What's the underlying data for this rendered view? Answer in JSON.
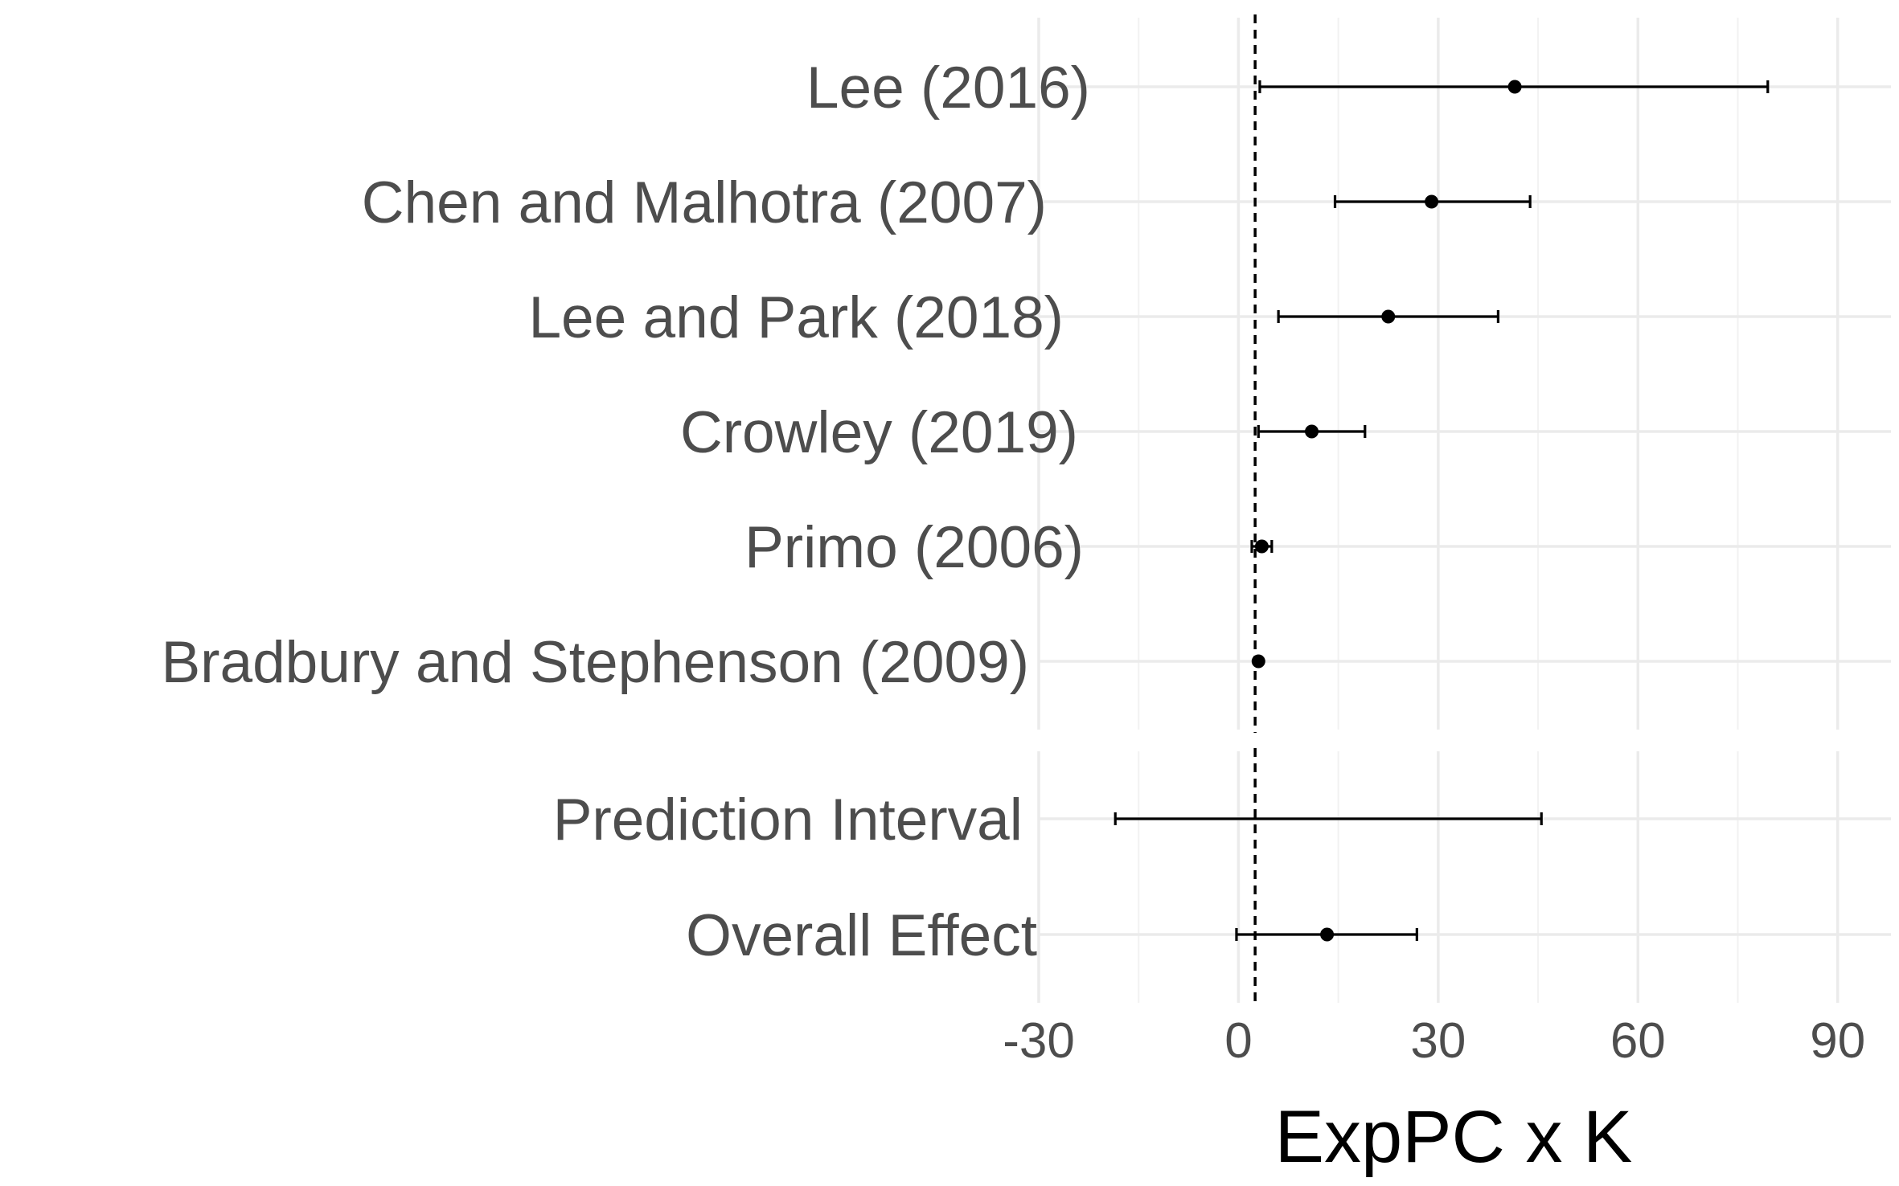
{
  "chart_data": {
    "type": "forest",
    "xlabel": "ExpPC x K",
    "xlim": [
      -30,
      98
    ],
    "x_ticks": [
      -30,
      0,
      30,
      60,
      90
    ],
    "x_minor_ticks": [
      -15,
      15,
      45,
      75
    ],
    "reference_line": {
      "x": 2.5,
      "style": "dashed"
    },
    "grid": true,
    "panels": [
      {
        "name": "studies",
        "rows": [
          {
            "label": "Lee (2016)",
            "estimate": 41.5,
            "lower": 3.2,
            "upper": 79.5
          },
          {
            "label": "Chen and Malhotra (2007)",
            "estimate": 29.0,
            "lower": 14.5,
            "upper": 43.8
          },
          {
            "label": "Lee and Park (2018)",
            "estimate": 22.5,
            "lower": 6.0,
            "upper": 39.0
          },
          {
            "label": "Crowley (2019)",
            "estimate": 11.0,
            "lower": 3.0,
            "upper": 19.0
          },
          {
            "label": "Primo (2006)",
            "estimate": 3.5,
            "lower": 2.0,
            "upper": 5.0
          },
          {
            "label": "Bradbury and Stephenson (2009)",
            "estimate": 3.0,
            "lower": 2.8,
            "upper": 3.2
          }
        ]
      },
      {
        "name": "summary",
        "rows": [
          {
            "label": "Prediction Interval",
            "estimate": null,
            "lower": -18.5,
            "upper": 45.5
          },
          {
            "label": "Overall Effect",
            "estimate": 13.3,
            "lower": -0.3,
            "upper": 26.8
          }
        ]
      }
    ]
  }
}
